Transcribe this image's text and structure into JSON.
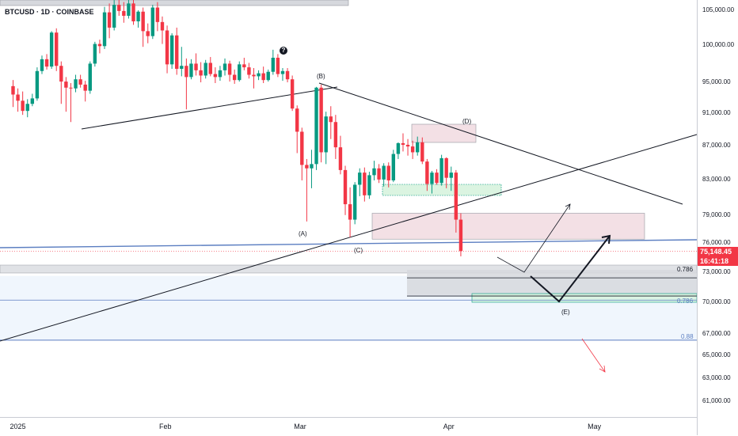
{
  "ticker": "BTCUSD · 1D · COINBASE",
  "price_badge": {
    "price": "75,148.45",
    "countdown": "16:41:18",
    "color": "#f23645"
  },
  "fib_levels": [
    {
      "label": "0.786",
      "value": 72400,
      "color": "#131722"
    },
    {
      "label": "0.786",
      "value": 70200,
      "color": "#5b7ec1"
    },
    {
      "label": "0.88",
      "value": 66400,
      "color": "#5b7ec1"
    }
  ],
  "wave_labels": [
    "(A)",
    "(B)",
    "(C)",
    "(D)",
    "(E)"
  ],
  "colors": {
    "up": "#089981",
    "down": "#f23645",
    "line": "#131722",
    "blue_line": "#5b7ec1"
  },
  "chart_data": {
    "type": "candlestick",
    "symbol": "BTCUSD",
    "interval": "1D",
    "exchange": "COINBASE",
    "y_axis": {
      "scale": "log",
      "ticks": [
        {
          "value": 105000,
          "label": "105,000.00"
        },
        {
          "value": 100000,
          "label": "100,000.00"
        },
        {
          "value": 95000,
          "label": "95,000.00"
        },
        {
          "value": 91000,
          "label": "91,000.00"
        },
        {
          "value": 87000,
          "label": "87,000.00"
        },
        {
          "value": 83000,
          "label": "83,000.00"
        },
        {
          "value": 79000,
          "label": "79,000.00"
        },
        {
          "value": 76000,
          "label": "76,000.00"
        },
        {
          "value": 73000,
          "label": "73,000.00"
        },
        {
          "value": 70000,
          "label": "70,000.00"
        },
        {
          "value": 67000,
          "label": "67,000.00"
        },
        {
          "value": 65000,
          "label": "65,000.00"
        },
        {
          "value": 63000,
          "label": "63,000.00"
        },
        {
          "value": 61000,
          "label": "61,000.00"
        }
      ]
    },
    "x_axis": {
      "ticks": [
        {
          "index": 0,
          "label": "2025"
        },
        {
          "index": 31,
          "label": "Feb"
        },
        {
          "index": 59,
          "label": "Mar"
        },
        {
          "index": 90,
          "label": "Apr"
        },
        {
          "index": 120,
          "label": "May"
        }
      ]
    },
    "candles": [
      [
        94500,
        95300,
        91800,
        93400
      ],
      [
        93400,
        94200,
        91200,
        92600
      ],
      [
        92600,
        93800,
        90800,
        91300
      ],
      [
        91300,
        92800,
        90500,
        92200
      ],
      [
        92200,
        93500,
        91900,
        92900
      ],
      [
        92900,
        97000,
        92600,
        96500
      ],
      [
        96500,
        98600,
        96100,
        98100
      ],
      [
        98100,
        98800,
        96700,
        97100
      ],
      [
        97100,
        102000,
        96800,
        101800
      ],
      [
        101800,
        102400,
        96500,
        97200
      ],
      [
        97200,
        97800,
        92200,
        95100
      ],
      [
        95100,
        95700,
        91200,
        94300
      ],
      [
        94300,
        94900,
        89900,
        94200
      ],
      [
        94200,
        96000,
        93700,
        95400
      ],
      [
        95400,
        96000,
        94300,
        94700
      ],
      [
        94700,
        95200,
        92500,
        93900
      ],
      [
        93900,
        97800,
        93500,
        97500
      ],
      [
        97500,
        100500,
        97100,
        100200
      ],
      [
        100200,
        100800,
        98900,
        99900
      ],
      [
        99900,
        105500,
        99500,
        104700
      ],
      [
        104700,
        106000,
        101000,
        102500
      ],
      [
        102500,
        106500,
        102100,
        105800
      ],
      [
        105800,
        109500,
        104200,
        104900
      ],
      [
        104900,
        106200,
        103200,
        104200
      ],
      [
        104200,
        106800,
        103800,
        106000
      ],
      [
        106000,
        107200,
        102900,
        103400
      ],
      [
        103400,
        105000,
        102500,
        104800
      ],
      [
        104800,
        105400,
        99800,
        102000
      ],
      [
        102000,
        103100,
        100300,
        101300
      ],
      [
        101300,
        105800,
        100900,
        105400
      ],
      [
        105400,
        106200,
        102000,
        103300
      ],
      [
        103300,
        104100,
        100200,
        102100
      ],
      [
        102100,
        102800,
        96200,
        97400
      ],
      [
        97400,
        101700,
        96800,
        101400
      ],
      [
        101400,
        102500,
        96000,
        96800
      ],
      [
        96800,
        99800,
        95800,
        97200
      ],
      [
        97200,
        98200,
        91500,
        95700
      ],
      [
        95700,
        98100,
        95400,
        97500
      ],
      [
        97500,
        98900,
        95900,
        96600
      ],
      [
        96600,
        97700,
        95000,
        95900
      ],
      [
        95900,
        98000,
        95500,
        97600
      ],
      [
        97600,
        98400,
        95800,
        96100
      ],
      [
        96100,
        97000,
        94900,
        95700
      ],
      [
        95700,
        97200,
        95200,
        96600
      ],
      [
        96600,
        98200,
        95900,
        97500
      ],
      [
        97500,
        97900,
        95100,
        96000
      ],
      [
        96000,
        96700,
        94800,
        95300
      ],
      [
        95300,
        97800,
        95100,
        97400
      ],
      [
        97400,
        98300,
        96600,
        97000
      ],
      [
        97000,
        97600,
        95500,
        96000
      ],
      [
        96000,
        96900,
        94200,
        95800
      ],
      [
        95800,
        96600,
        95300,
        96200
      ],
      [
        96200,
        97100,
        94900,
        95300
      ],
      [
        95300,
        96700,
        95100,
        96400
      ],
      [
        96400,
        99400,
        96000,
        98300
      ],
      [
        98300,
        98800,
        95700,
        96100
      ],
      [
        96100,
        96900,
        95200,
        96500
      ],
      [
        96500,
        96900,
        95000,
        95400
      ],
      [
        95400,
        95900,
        91300,
        91600
      ],
      [
        91600,
        92000,
        86100,
        88700
      ],
      [
        88700,
        89200,
        82900,
        84700
      ],
      [
        84700,
        85400,
        78300,
        84300
      ],
      [
        84300,
        86500,
        82000,
        84800
      ],
      [
        84800,
        94400,
        84100,
        94300
      ],
      [
        94300,
        94700,
        85000,
        86200
      ],
      [
        86200,
        91200,
        84800,
        90600
      ],
      [
        90600,
        91900,
        87800,
        89900
      ],
      [
        89900,
        90800,
        85400,
        86800
      ],
      [
        86800,
        88200,
        83600,
        84100
      ],
      [
        84100,
        84600,
        79000,
        80200
      ],
      [
        80200,
        82100,
        76600,
        78500
      ],
      [
        78500,
        82700,
        78000,
        82400
      ],
      [
        82400,
        84300,
        81100,
        83800
      ],
      [
        83800,
        84400,
        80500,
        81200
      ],
      [
        81200,
        83900,
        80800,
        83500
      ],
      [
        83500,
        85200,
        82900,
        84300
      ],
      [
        84300,
        84800,
        82600,
        83000
      ],
      [
        83000,
        84900,
        82200,
        84600
      ],
      [
        84600,
        85000,
        82100,
        82900
      ],
      [
        82900,
        86500,
        82700,
        86000
      ],
      [
        86000,
        87400,
        85400,
        87300
      ],
      [
        87300,
        88500,
        86300,
        87100
      ],
      [
        87100,
        87800,
        85800,
        86900
      ],
      [
        86900,
        87600,
        85400,
        86200
      ],
      [
        86200,
        88100,
        85800,
        87400
      ],
      [
        87400,
        88000,
        84800,
        85100
      ],
      [
        85100,
        85400,
        81700,
        82500
      ],
      [
        82500,
        84000,
        81400,
        83800
      ],
      [
        83800,
        84200,
        82400,
        82600
      ],
      [
        82600,
        85900,
        82300,
        85500
      ],
      [
        85500,
        85600,
        82000,
        83200
      ],
      [
        83200,
        84500,
        81700,
        83800
      ],
      [
        83800,
        84100,
        77100,
        78500
      ],
      [
        78500,
        79200,
        74600,
        75148
      ]
    ]
  }
}
